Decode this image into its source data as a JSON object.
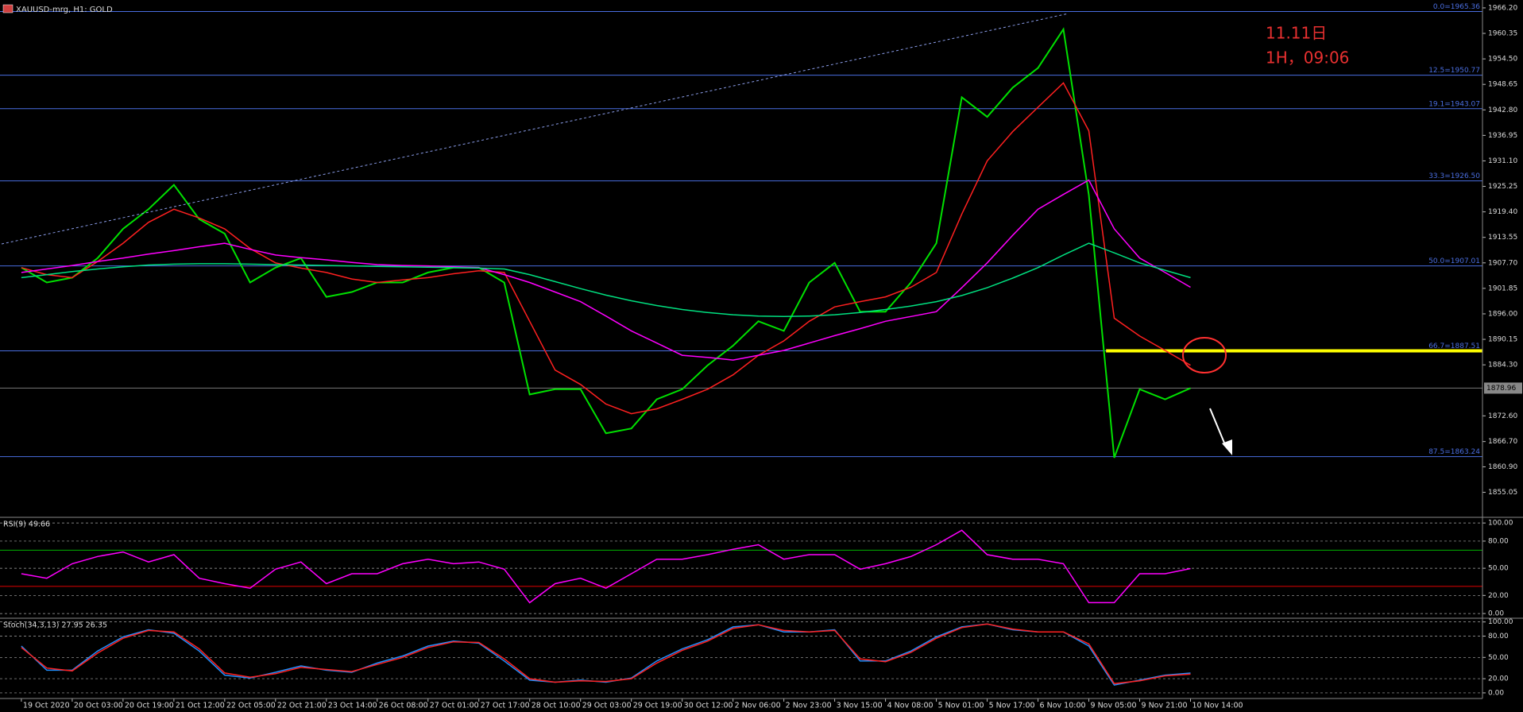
{
  "chart_data": [
    {
      "type": "line",
      "title": "XAUUSD-mrg, H1: GOLD",
      "annotations": [
        "11.11日",
        "1H，09:06"
      ],
      "categories": [
        "19 Oct 2020",
        null,
        "20 Oct 03:00",
        null,
        "20 Oct 19:00",
        null,
        "21 Oct 12:00",
        null,
        "22 Oct 05:00",
        null,
        "22 Oct 21:00",
        null,
        "23 Oct 14:00",
        null,
        "26 Oct 08:00",
        null,
        "27 Oct 01:00",
        null,
        "27 Oct 17:00",
        null,
        "28 Oct 10:00",
        null,
        "29 Oct 03:00",
        null,
        "29 Oct 19:00",
        null,
        "30 Oct 12:00",
        null,
        "2 Nov 06:00",
        null,
        "2 Nov 23:00",
        null,
        "3 Nov 15:00",
        null,
        "4 Nov 08:00",
        null,
        "5 Nov 01:00",
        null,
        "5 Nov 17:00",
        null,
        "6 Nov 10:00",
        null,
        "9 Nov 05:00",
        null,
        "9 Nov 21:00",
        null,
        "10 Nov 14:00"
      ],
      "series": [
        {
          "color": "#00e000",
          "values": [
            1906.6,
            1903.2,
            1904.3,
            1908.8,
            1915.5,
            1920.0,
            1925.6,
            1917.7,
            1914.4,
            1903.2,
            1906.6,
            1908.8,
            1899.9,
            1901.0,
            1903.2,
            1903.2,
            1905.5,
            1906.6,
            1906.6,
            1903.2,
            1877.5,
            1878.7,
            1878.7,
            1868.6,
            1869.7,
            1876.4,
            1878.7,
            1884.2,
            1888.7,
            1894.3,
            1892.1,
            1903.2,
            1907.7,
            1896.5,
            1896.5,
            1903.2,
            1912.2,
            1945.7,
            1941.2,
            1947.9,
            1952.4,
            1961.3,
            1923.3,
            1863.0,
            1878.7,
            1876.4,
            1878.96
          ]
        },
        {
          "color": "#ff2020",
          "values": [
            1906.6,
            1905.0,
            1904.3,
            1908,
            1912.2,
            1917,
            1920.0,
            1918,
            1915.5,
            1911,
            1907.7,
            1906.5,
            1905.5,
            1904,
            1903.2,
            1903.8,
            1904.3,
            1905.2,
            1905.9,
            1905.5,
            1894.3,
            1883.1,
            1879.8,
            1875.3,
            1873.1,
            1874.2,
            1876.4,
            1878.7,
            1882.0,
            1886.5,
            1889.8,
            1894.3,
            1897.6,
            1898.8,
            1899.9,
            1902.1,
            1905.5,
            1918.9,
            1931.1,
            1937.8,
            1943.4,
            1949.0,
            1938,
            1895,
            1890.9,
            1887.6,
            1884.2
          ]
        },
        {
          "color": "#ff00ff",
          "values": [
            1905.5,
            1906.3,
            1907.1,
            1908,
            1908.8,
            1909.7,
            1910.5,
            1911.4,
            1912.2,
            1910.8,
            1909.5,
            1908.9,
            1908.4,
            1907.8,
            1907.3,
            1907.1,
            1907,
            1906.8,
            1906.6,
            1905,
            1903.2,
            1901,
            1898.8,
            1895.5,
            1892.1,
            1889.3,
            1886.5,
            1886,
            1885.4,
            1886.5,
            1887.6,
            1889.3,
            1891,
            1892.6,
            1894.3,
            1895.4,
            1896.5,
            1902,
            1907.7,
            1914,
            1920,
            1923.4,
            1926.7,
            1915.5,
            1908.8,
            1905.5,
            1902.1
          ]
        },
        {
          "color": "#00e080",
          "values": [
            1904.3,
            1905,
            1905.7,
            1906.3,
            1906.8,
            1907.2,
            1907.4,
            1907.5,
            1907.5,
            1907.4,
            1907.3,
            1907.2,
            1907.1,
            1907,
            1906.9,
            1906.8,
            1906.7,
            1906.6,
            1906.5,
            1906.3,
            1905,
            1903.4,
            1901.8,
            1900.3,
            1899,
            1897.9,
            1897,
            1896.3,
            1895.8,
            1895.5,
            1895.4,
            1895.5,
            1895.8,
            1896.3,
            1897,
            1897.8,
            1898.8,
            1900.2,
            1902,
            1904.2,
            1906.6,
            1909.5,
            1912.2,
            1910,
            1907.7,
            1906,
            1904.3
          ]
        }
      ],
      "ylim": [
        1849.5,
        1967.1
      ],
      "yticks": [
        {
          "value": 1966.2,
          "label": "1966.20"
        },
        1960.35,
        {
          "value": 1954.5,
          "label": "1954.50"
        },
        1948.65,
        {
          "value": 1942.8,
          "label": "1942.80"
        },
        1936.95,
        {
          "value": 1931.1,
          "label": "1931.10"
        },
        1925.25,
        {
          "value": 1919.4,
          "label": "1919.40"
        },
        1913.55,
        {
          "value": 1907.7,
          "label": "1907.70"
        },
        1901.85,
        {
          "value": 1896,
          "label": "1896.00"
        },
        1890.15,
        {
          "value": 1884.3,
          "label": "1884.30"
        },
        {
          "value": 1872.6,
          "label": "1872.60"
        },
        {
          "value": 1866.7,
          "label": "1866.70"
        },
        {
          "value": 1860.9,
          "label": "1860.90"
        },
        1855.05
      ],
      "levels": [
        {
          "value": 1965.36,
          "label": "0.0=1965.36"
        },
        {
          "value": 1950.77,
          "label": "12.5=1950.77"
        },
        {
          "value": 1943.07,
          "label": "19.1=1943.07"
        },
        {
          "value": 1926.5,
          "label": "33.3=1926.50"
        },
        {
          "value": 1907.01,
          "label": "50.0=1907.01"
        },
        {
          "value": 1887.51,
          "label": "66.7=1887.51"
        },
        {
          "value": 1863.24,
          "label": "87.5=1863.24"
        }
      ],
      "level_color": "#4a6ee0",
      "current_price": {
        "value": 1878.96,
        "label": "1878.96"
      },
      "highlight": {
        "value": 1887.51,
        "color": "#ffff00"
      }
    },
    {
      "type": "line",
      "title": "RSI(9) 49.66",
      "series": [
        {
          "color": "#ff00ff",
          "values": [
            44,
            39,
            55,
            63,
            68,
            57,
            65,
            39,
            33,
            28,
            49,
            57,
            33,
            44,
            44,
            55,
            60,
            55,
            57,
            49,
            12,
            33,
            39,
            28,
            44,
            60,
            60,
            65,
            71,
            76,
            60,
            65,
            65,
            49,
            55,
            63,
            76,
            92,
            65,
            60,
            60,
            55,
            12,
            12,
            44,
            44,
            49.66
          ]
        }
      ],
      "ylim": [
        -4.3,
        105.4
      ],
      "yticks": [
        {
          "value": 100,
          "label": "100.00"
        },
        {
          "value": 80,
          "label": "80.00"
        },
        {
          "value": 50,
          "label": "50.00"
        },
        {
          "value": 20,
          "label": "20.00"
        },
        {
          "value": 0,
          "label": "0.00"
        }
      ],
      "grid": true,
      "level_lines": [
        {
          "value": 70,
          "color": "#00b000"
        },
        {
          "value": 30,
          "color": "#e00000"
        }
      ]
    },
    {
      "type": "line",
      "title": "Stoch(34,3,13) 27.95 26.35",
      "series": [
        {
          "color": "#2090ff",
          "values": [
            66,
            32,
            32,
            59,
            79,
            89,
            84,
            59,
            25,
            21,
            29,
            38,
            32,
            29,
            42,
            52,
            66,
            73,
            70,
            45,
            18,
            15,
            18,
            15,
            21,
            45,
            62,
            75,
            93,
            96,
            86,
            86,
            89,
            45,
            45,
            59,
            79,
            93,
            97,
            89,
            86,
            86,
            66,
            11,
            18,
            25,
            27.95
          ]
        },
        {
          "color": "#ff2020",
          "values": [
            64,
            35,
            31,
            56,
            77,
            88,
            86,
            62,
            28,
            22,
            27,
            36,
            33,
            30,
            40,
            50,
            64,
            72,
            71,
            48,
            20,
            15,
            17,
            16,
            20,
            42,
            60,
            73,
            91,
            96,
            88,
            86,
            88,
            48,
            44,
            57,
            77,
            92,
            97,
            90,
            86,
            86,
            69,
            13,
            17,
            24,
            26.35
          ]
        }
      ],
      "ylim": [
        -6.8,
        104.1
      ],
      "yticks": [
        {
          "value": 100,
          "label": "100.00"
        },
        {
          "value": 80,
          "label": "80.00"
        },
        {
          "value": 50,
          "label": "50.00"
        },
        {
          "value": 20,
          "label": "20.00"
        },
        {
          "value": 0,
          "label": "0.00"
        }
      ],
      "grid": true
    }
  ]
}
